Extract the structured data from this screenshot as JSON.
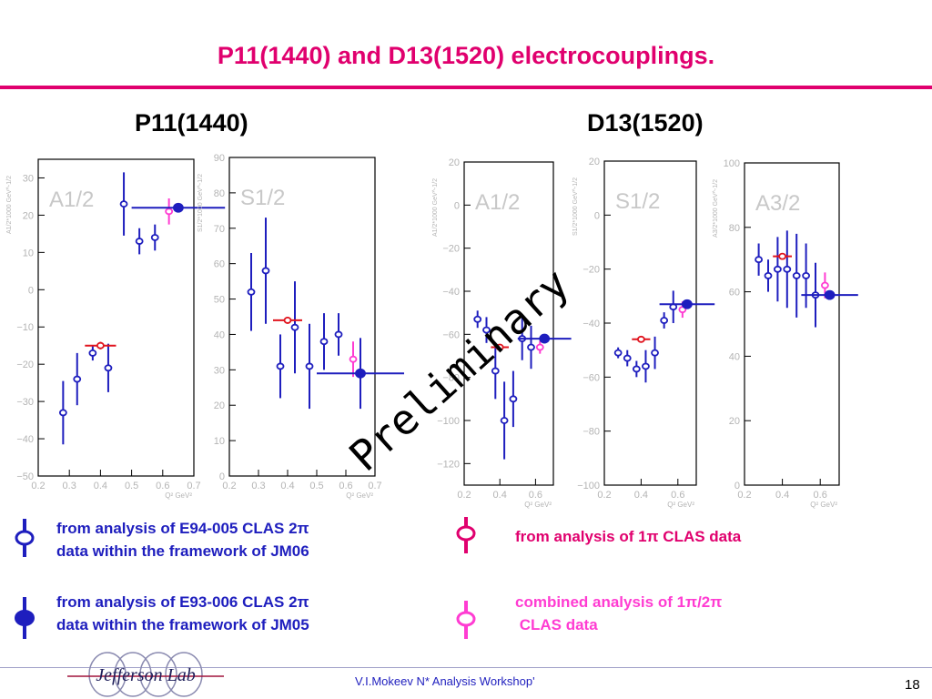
{
  "slide": {
    "title": "P11(1440) and D13(1520) electrocouplings.",
    "left_group_title": "P11(1440)",
    "right_group_title": "D13(1520)",
    "watermark": "Preliminary",
    "footer": "V.I.Mokeev  N* Analysis Workshop'",
    "page_number": "18",
    "logo_text": "Jefferson Lab"
  },
  "legend": [
    {
      "symbol": "open-blue",
      "lines": [
        "from analysis of E94-005 CLAS 2π",
        "data within the framework of JM06"
      ]
    },
    {
      "symbol": "filled-blue",
      "lines": [
        "from analysis of E93-006 CLAS 2π",
        "data within the framework of JM05"
      ]
    },
    {
      "symbol": "open-red",
      "lines": [
        "from analysis of 1π CLAS data"
      ]
    },
    {
      "symbol": "open-magenta",
      "lines": [
        "combined  analysis of 1π/2π",
        " CLAS data"
      ]
    }
  ],
  "colors": {
    "blue": "#1e1ebe",
    "red": "#e0141e",
    "magenta": "#ff3cd2",
    "title": "#e0006e"
  },
  "chart_data": [
    {
      "type": "scatter",
      "panel_label": "A1/2",
      "ylabel": "A1/2*1000 GeV^-1/2",
      "xlabel": "Q² GeV²",
      "xlim": [
        0.2,
        0.7
      ],
      "ylim": [
        -50,
        35
      ],
      "xticks": [
        0.2,
        0.3,
        0.4,
        0.5,
        0.6,
        0.7
      ],
      "yticks": [
        -50,
        -40,
        -30,
        -20,
        -10,
        0,
        10,
        20,
        30
      ],
      "series": [
        {
          "symbol": "open-blue",
          "points": [
            {
              "x": 0.28,
              "y": -33,
              "e": 8.5
            },
            {
              "x": 0.325,
              "y": -24,
              "e": 7
            },
            {
              "x": 0.375,
              "y": -17,
              "e": 2
            },
            {
              "x": 0.425,
              "y": -21,
              "e": 6.5
            },
            {
              "x": 0.475,
              "y": 23,
              "e": 8.5
            },
            {
              "x": 0.525,
              "y": 13,
              "e": 3.5
            },
            {
              "x": 0.575,
              "y": 14,
              "e": 3.5
            }
          ]
        },
        {
          "symbol": "open-red",
          "points": [
            {
              "x": 0.4,
              "y": -15,
              "e": 1,
              "xe": 0.05
            }
          ]
        },
        {
          "symbol": "open-magenta",
          "points": [
            {
              "x": 0.62,
              "y": 21,
              "e": 3.5
            }
          ]
        },
        {
          "symbol": "filled-blue",
          "points": [
            {
              "x": 0.65,
              "y": 22,
              "e": 0.5,
              "xe": 0.15
            }
          ]
        }
      ]
    },
    {
      "type": "scatter",
      "panel_label": "S1/2",
      "ylabel": "S1/2*1000 GeV^-1/2",
      "xlabel": "Q² GeV²",
      "xlim": [
        0.2,
        0.7
      ],
      "ylim": [
        0,
        90
      ],
      "xticks": [
        0.2,
        0.3,
        0.4,
        0.5,
        0.6,
        0.7
      ],
      "yticks": [
        0,
        10,
        20,
        30,
        40,
        50,
        60,
        70,
        80,
        90
      ],
      "series": [
        {
          "symbol": "open-blue",
          "points": [
            {
              "x": 0.275,
              "y": 52,
              "e": 11
            },
            {
              "x": 0.325,
              "y": 58,
              "e": 15
            },
            {
              "x": 0.375,
              "y": 31,
              "e": 9
            },
            {
              "x": 0.425,
              "y": 42,
              "e": 13
            },
            {
              "x": 0.475,
              "y": 31,
              "e": 12
            },
            {
              "x": 0.525,
              "y": 38,
              "e": 8
            },
            {
              "x": 0.575,
              "y": 40,
              "e": 6
            }
          ]
        },
        {
          "symbol": "open-red",
          "points": [
            {
              "x": 0.4,
              "y": 44,
              "e": 1,
              "xe": 0.05
            }
          ]
        },
        {
          "symbol": "open-magenta",
          "points": [
            {
              "x": 0.625,
              "y": 33,
              "e": 5
            }
          ]
        },
        {
          "symbol": "filled-blue",
          "points": [
            {
              "x": 0.65,
              "y": 29,
              "e": 10,
              "xe": 0.15
            }
          ]
        }
      ]
    },
    {
      "type": "scatter",
      "panel_label": "A1/2",
      "ylabel": "A1/2*1000 GeV^-1/2",
      "xlabel": "Q² GeV²",
      "xlim": [
        0.2,
        0.7
      ],
      "ylim": [
        -130,
        20
      ],
      "xticks": [
        0.2,
        0.4,
        0.6
      ],
      "yticks": [
        -120,
        -100,
        -80,
        -60,
        -40,
        -20,
        0,
        20
      ],
      "series": [
        {
          "symbol": "open-blue",
          "points": [
            {
              "x": 0.275,
              "y": -53,
              "e": 4
            },
            {
              "x": 0.325,
              "y": -58,
              "e": 6
            },
            {
              "x": 0.375,
              "y": -77,
              "e": 13
            },
            {
              "x": 0.425,
              "y": -100,
              "e": 18
            },
            {
              "x": 0.475,
              "y": -90,
              "e": 13
            },
            {
              "x": 0.525,
              "y": -62,
              "e": 10
            },
            {
              "x": 0.575,
              "y": -66,
              "e": 10
            }
          ]
        },
        {
          "symbol": "open-red",
          "points": [
            {
              "x": 0.4,
              "y": -66,
              "e": 1,
              "xe": 0.05
            }
          ]
        },
        {
          "symbol": "open-magenta",
          "points": [
            {
              "x": 0.625,
              "y": -66,
              "e": 3
            }
          ]
        },
        {
          "symbol": "filled-blue",
          "points": [
            {
              "x": 0.65,
              "y": -62,
              "e": 1,
              "xe": 0.15
            }
          ]
        }
      ]
    },
    {
      "type": "scatter",
      "panel_label": "S1/2",
      "ylabel": "S1/2*1000 GeV^-1/2",
      "xlabel": "Q² GeV²",
      "xlim": [
        0.2,
        0.7
      ],
      "ylim": [
        -100,
        20
      ],
      "xticks": [
        0.2,
        0.4,
        0.6
      ],
      "yticks": [
        -100,
        -80,
        -60,
        -40,
        -20,
        0,
        20
      ],
      "series": [
        {
          "symbol": "open-blue",
          "points": [
            {
              "x": 0.275,
              "y": -51,
              "e": 2
            },
            {
              "x": 0.325,
              "y": -53,
              "e": 3
            },
            {
              "x": 0.375,
              "y": -57,
              "e": 3
            },
            {
              "x": 0.425,
              "y": -56,
              "e": 6
            },
            {
              "x": 0.475,
              "y": -51,
              "e": 6
            },
            {
              "x": 0.525,
              "y": -39,
              "e": 3
            },
            {
              "x": 0.575,
              "y": -34,
              "e": 6
            }
          ]
        },
        {
          "symbol": "open-red",
          "points": [
            {
              "x": 0.4,
              "y": -46,
              "e": 1,
              "xe": 0.05
            }
          ]
        },
        {
          "symbol": "open-magenta",
          "points": [
            {
              "x": 0.625,
              "y": -35,
              "e": 3
            }
          ]
        },
        {
          "symbol": "filled-blue",
          "points": [
            {
              "x": 0.65,
              "y": -33,
              "e": 1,
              "xe": 0.15
            }
          ]
        }
      ]
    },
    {
      "type": "scatter",
      "panel_label": "A3/2",
      "ylabel": "A3/2*1000 GeV^-1/2",
      "xlabel": "Q² GeV²",
      "xlim": [
        0.2,
        0.7
      ],
      "ylim": [
        0,
        100
      ],
      "xticks": [
        0.2,
        0.4,
        0.6
      ],
      "yticks": [
        0,
        20,
        40,
        60,
        80,
        100
      ],
      "series": [
        {
          "symbol": "open-blue",
          "points": [
            {
              "x": 0.275,
              "y": 70,
              "e": 5
            },
            {
              "x": 0.325,
              "y": 65,
              "e": 5
            },
            {
              "x": 0.375,
              "y": 67,
              "e": 10
            },
            {
              "x": 0.425,
              "y": 67,
              "e": 12
            },
            {
              "x": 0.475,
              "y": 65,
              "e": 13
            },
            {
              "x": 0.525,
              "y": 65,
              "e": 10
            },
            {
              "x": 0.575,
              "y": 59,
              "e": 10
            }
          ]
        },
        {
          "symbol": "open-red",
          "points": [
            {
              "x": 0.4,
              "y": 71,
              "e": 1,
              "xe": 0.05
            }
          ]
        },
        {
          "symbol": "open-magenta",
          "points": [
            {
              "x": 0.625,
              "y": 62,
              "e": 4
            }
          ]
        },
        {
          "symbol": "filled-blue",
          "points": [
            {
              "x": 0.65,
              "y": 59,
              "e": 1,
              "xe": 0.15
            }
          ]
        }
      ]
    }
  ]
}
